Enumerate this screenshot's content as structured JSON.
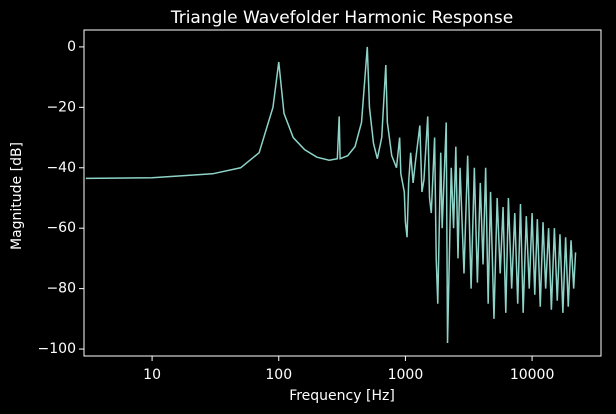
{
  "chart_data": {
    "type": "line",
    "title": "Triangle Wavefolder Harmonic Response",
    "x_label": "Frequency [Hz]",
    "y_label": "Magnitude [dB]",
    "x_scale": "log",
    "xlim": [
      2.9,
      35000
    ],
    "ylim": [
      -102.3,
      5.6
    ],
    "xticks": [
      10,
      100,
      1000,
      10000
    ],
    "yticks": [
      {
        "value": -100,
        "label": "−100"
      },
      {
        "value": -80,
        "label": "−80"
      },
      {
        "value": -60,
        "label": "−60"
      },
      {
        "value": -40,
        "label": "−40"
      },
      {
        "value": -20,
        "label": "−20"
      },
      0
    ],
    "background": "#000000",
    "series": [
      {
        "color": "#8dd3c7",
        "x": [
          3,
          10,
          30,
          50,
          70,
          90,
          100,
          110,
          130,
          160,
          200,
          250,
          290,
          300,
          305,
          350,
          400,
          450,
          500,
          520,
          560,
          600,
          650,
          700,
          720,
          780,
          850,
          900,
          920,
          980,
          1000,
          1030,
          1060,
          1100,
          1150,
          1200,
          1300,
          1350,
          1400,
          1500,
          1550,
          1600,
          1700,
          1750,
          1800,
          1900,
          1950,
          2100,
          2150,
          2300,
          2400,
          2500,
          2600,
          2700,
          2900,
          3100,
          3300,
          3500,
          3700,
          3900,
          4100,
          4300,
          4500,
          4700,
          5000,
          5300,
          5600,
          5900,
          6200,
          6500,
          6900,
          7300,
          7700,
          8100,
          8500,
          9000,
          9500,
          10000,
          10500,
          11000,
          11600,
          12200,
          12800,
          13500,
          14200,
          15000,
          15800,
          16600,
          17500,
          18400,
          19300,
          20300,
          21300,
          22050
        ],
        "values": [
          -43.5,
          -43.3,
          -42,
          -40,
          -35,
          -20,
          -5,
          -22,
          -30,
          -34,
          -36.5,
          -37.5,
          -37,
          -23,
          -37,
          -36,
          -33,
          -25,
          0,
          -20,
          -32,
          -37,
          -30,
          -6,
          -25,
          -36,
          -40,
          -30,
          -42,
          -48,
          -58,
          -63,
          -45,
          -35,
          -45,
          -38,
          -26,
          -48,
          -44,
          -23,
          -50,
          -55,
          -30,
          -70,
          -85,
          -35,
          -60,
          -25,
          -98,
          -40,
          -60,
          -33,
          -70,
          -40,
          -75,
          -36,
          -80,
          -40,
          -78,
          -45,
          -72,
          -40,
          -85,
          -48,
          -90,
          -50,
          -75,
          -53,
          -88,
          -50,
          -80,
          -55,
          -85,
          -52,
          -88,
          -56,
          -80,
          -55,
          -82,
          -57,
          -86,
          -58,
          -80,
          -60,
          -87,
          -60,
          -84,
          -62,
          -88,
          -63,
          -86,
          -64,
          -80,
          -68
        ]
      }
    ]
  }
}
